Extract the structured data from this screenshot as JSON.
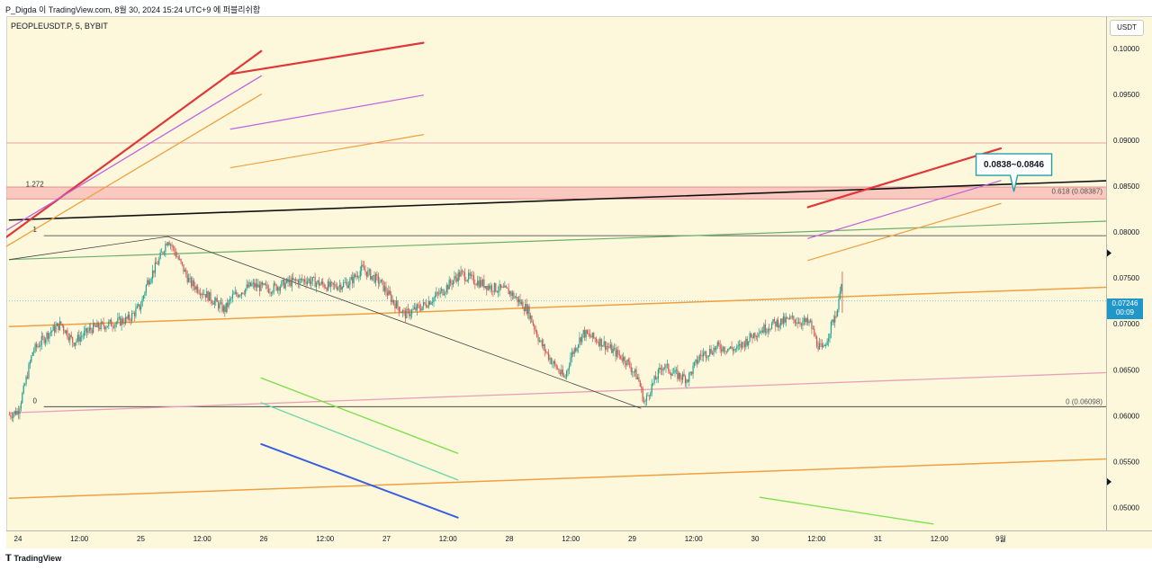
{
  "header": {
    "byline": "P_Digda 이 TradingView.com, 8월 30, 2024 15:24 UTC+9 에 퍼블리쉬함"
  },
  "footer": {
    "logo_text": "TradingView",
    "logo_icon": "tradingview-logo-icon"
  },
  "chart_data": {
    "type": "candlestick",
    "symbol": "PEOPLEUSDT.P, 5, BYBIT",
    "currency": "USDT",
    "current_price": "0.07246",
    "countdown": "00:09",
    "ylim": [
      0.0475,
      0.1035
    ],
    "y_ticks": [
      {
        "value": 0.1,
        "label": "0.10000"
      },
      {
        "value": 0.095,
        "label": "0.09500"
      },
      {
        "value": 0.09,
        "label": "0.09000"
      },
      {
        "value": 0.085,
        "label": "0.08500"
      },
      {
        "value": 0.08,
        "label": "0.08000"
      },
      {
        "value": 0.075,
        "label": "0.07500"
      },
      {
        "value": 0.07,
        "label": "0.07000"
      },
      {
        "value": 0.065,
        "label": "0.06500"
      },
      {
        "value": 0.06,
        "label": "0.06000"
      },
      {
        "value": 0.055,
        "label": "0.05500"
      },
      {
        "value": 0.05,
        "label": "0.05000"
      }
    ],
    "x_ticks": [
      {
        "t": 0,
        "label": "24"
      },
      {
        "t": 0.5,
        "label": "12:00"
      },
      {
        "t": 1,
        "label": "25"
      },
      {
        "t": 1.5,
        "label": "12:00"
      },
      {
        "t": 2,
        "label": "26"
      },
      {
        "t": 2.5,
        "label": "12:00"
      },
      {
        "t": 3,
        "label": "27"
      },
      {
        "t": 3.5,
        "label": "12:00"
      },
      {
        "t": 4,
        "label": "28"
      },
      {
        "t": 4.5,
        "label": "12:00"
      },
      {
        "t": 5,
        "label": "29"
      },
      {
        "t": 5.5,
        "label": "12:00"
      },
      {
        "t": 6,
        "label": "30"
      },
      {
        "t": 6.5,
        "label": "12:00"
      },
      {
        "t": 7,
        "label": "31"
      },
      {
        "t": 7.5,
        "label": "12:00"
      },
      {
        "t": 8,
        "label": "9월"
      }
    ],
    "price_path": [
      [
        -0.07,
        0.0601
      ],
      [
        0.0,
        0.0605
      ],
      [
        0.05,
        0.063
      ],
      [
        0.12,
        0.067
      ],
      [
        0.25,
        0.069
      ],
      [
        0.35,
        0.07
      ],
      [
        0.45,
        0.068
      ],
      [
        0.6,
        0.0695
      ],
      [
        0.75,
        0.07
      ],
      [
        0.9,
        0.0705
      ],
      [
        1.0,
        0.072
      ],
      [
        1.05,
        0.0745
      ],
      [
        1.15,
        0.077
      ],
      [
        1.22,
        0.0793
      ],
      [
        1.27,
        0.078
      ],
      [
        1.4,
        0.0745
      ],
      [
        1.55,
        0.073
      ],
      [
        1.68,
        0.0715
      ],
      [
        1.75,
        0.073
      ],
      [
        1.9,
        0.0742
      ],
      [
        2.05,
        0.0738
      ],
      [
        2.2,
        0.0745
      ],
      [
        2.35,
        0.0748
      ],
      [
        2.55,
        0.074
      ],
      [
        2.7,
        0.0745
      ],
      [
        2.8,
        0.076
      ],
      [
        2.95,
        0.0745
      ],
      [
        3.05,
        0.0725
      ],
      [
        3.15,
        0.071
      ],
      [
        3.3,
        0.072
      ],
      [
        3.45,
        0.0735
      ],
      [
        3.6,
        0.0755
      ],
      [
        3.7,
        0.0748
      ],
      [
        3.85,
        0.074
      ],
      [
        4.0,
        0.0735
      ],
      [
        4.15,
        0.0715
      ],
      [
        4.25,
        0.068
      ],
      [
        4.35,
        0.0658
      ],
      [
        4.45,
        0.064
      ],
      [
        4.5,
        0.0665
      ],
      [
        4.6,
        0.069
      ],
      [
        4.75,
        0.068
      ],
      [
        4.85,
        0.067
      ],
      [
        4.95,
        0.066
      ],
      [
        5.05,
        0.064
      ],
      [
        5.1,
        0.0613
      ],
      [
        5.15,
        0.063
      ],
      [
        5.25,
        0.0655
      ],
      [
        5.35,
        0.0645
      ],
      [
        5.45,
        0.064
      ],
      [
        5.55,
        0.0665
      ],
      [
        5.7,
        0.0675
      ],
      [
        5.85,
        0.0672
      ],
      [
        6.0,
        0.069
      ],
      [
        6.15,
        0.07
      ],
      [
        6.3,
        0.0705
      ],
      [
        6.45,
        0.07
      ],
      [
        6.5,
        0.068
      ],
      [
        6.55,
        0.067
      ],
      [
        6.62,
        0.0698
      ],
      [
        6.68,
        0.072
      ],
      [
        6.7,
        0.0755
      ],
      [
        6.71,
        0.0724
      ]
    ],
    "fib": {
      "from_time": 0.21,
      "to_time": 8.0,
      "levels": [
        {
          "ratio": "1.272",
          "label": "1.272",
          "value": 0.08456,
          "line": false,
          "right_label": ""
        },
        {
          "ratio": "1",
          "label": "1",
          "value": 0.0796,
          "line": true,
          "right_label": ""
        },
        {
          "ratio": "0.618",
          "label": "",
          "value": 0.08387,
          "line": false,
          "right_label": "0.618 (0.08387)"
        },
        {
          "ratio": "0",
          "label": "0",
          "value": 0.06098,
          "line": true,
          "right_label": "0 (0.06098)"
        }
      ]
    },
    "zones": [
      {
        "from": 0.0836,
        "to": 0.0849,
        "color": "#f5a0a8"
      }
    ],
    "horizontal_lines": [
      {
        "value": 0.0897,
        "color": "#e8a0a0"
      },
      {
        "value": 0.0725,
        "color": "#88c8d0",
        "dashed": true
      }
    ],
    "trend_lines": [
      {
        "p1": [
          -0.07,
          0.0813
        ],
        "p2": [
          8.9,
          0.0856
        ],
        "color": "#111111",
        "width": 1.6
      },
      {
        "p1": [
          -0.07,
          0.077
        ],
        "p2": [
          8.9,
          0.0812
        ],
        "color": "#6ab06a",
        "width": 1.2
      },
      {
        "p1": [
          -0.07,
          0.0697
        ],
        "p2": [
          8.9,
          0.074
        ],
        "color": "#f0a040",
        "width": 1.5
      },
      {
        "p1": [
          -0.07,
          0.0603
        ],
        "p2": [
          8.9,
          0.0647
        ],
        "color": "#e8a0b8",
        "width": 1.3
      },
      {
        "p1": [
          -0.07,
          0.051
        ],
        "p2": [
          8.9,
          0.0553
        ],
        "color": "#f0a040",
        "width": 1.5
      },
      {
        "p1": [
          -0.07,
          0.077
        ],
        "p2": [
          1.22,
          0.0795
        ],
        "color": "#444444",
        "width": 0.8
      },
      {
        "p1": [
          1.22,
          0.0795
        ],
        "p2": [
          5.07,
          0.0608
        ],
        "color": "#444444",
        "width": 0.8
      },
      {
        "p1": [
          -0.55,
          0.075
        ],
        "p2": [
          1.98,
          0.0997
        ],
        "color": "#e03838",
        "width": 2.2
      },
      {
        "p1": [
          -0.55,
          0.0765
        ],
        "p2": [
          1.98,
          0.097
        ],
        "color": "#c060e0",
        "width": 1.3
      },
      {
        "p1": [
          -0.55,
          0.0748
        ],
        "p2": [
          1.98,
          0.095
        ],
        "color": "#f0a040",
        "width": 1.3
      },
      {
        "p1": [
          1.73,
          0.0972
        ],
        "p2": [
          3.3,
          0.1006
        ],
        "color": "#e03838",
        "width": 2.2
      },
      {
        "p1": [
          1.73,
          0.0912
        ],
        "p2": [
          3.3,
          0.0949
        ],
        "color": "#c060e0",
        "width": 1.2
      },
      {
        "p1": [
          1.73,
          0.087
        ],
        "p2": [
          3.3,
          0.0906
        ],
        "color": "#f0a040",
        "width": 1.2
      },
      {
        "p1": [
          6.43,
          0.0827
        ],
        "p2": [
          8.0,
          0.0891
        ],
        "color": "#e03838",
        "width": 2.2
      },
      {
        "p1": [
          6.43,
          0.0793
        ],
        "p2": [
          8.0,
          0.0856
        ],
        "color": "#c060e0",
        "width": 1.2
      },
      {
        "p1": [
          6.43,
          0.0769
        ],
        "p2": [
          8.0,
          0.0831
        ],
        "color": "#f0a040",
        "width": 1.2
      },
      {
        "p1": [
          1.98,
          0.0641
        ],
        "p2": [
          3.58,
          0.0559
        ],
        "color": "#80e050",
        "width": 1.4
      },
      {
        "p1": [
          1.98,
          0.0614
        ],
        "p2": [
          3.58,
          0.053
        ],
        "color": "#70d8a8",
        "width": 1.4
      },
      {
        "p1": [
          1.98,
          0.0569
        ],
        "p2": [
          3.58,
          0.0489
        ],
        "color": "#3a60e0",
        "width": 2.0
      },
      {
        "p1": [
          6.04,
          0.0511
        ],
        "p2": [
          7.45,
          0.0482
        ],
        "color": "#80e050",
        "width": 1.4
      }
    ],
    "callout": {
      "text": "0.0838~0.0846",
      "anchor": [
        8.07,
        0.0844
      ]
    },
    "axis_markers": [
      {
        "value": 0.0777,
        "color": "#131722"
      },
      {
        "value": 0.0528,
        "color": "#131722"
      }
    ]
  }
}
